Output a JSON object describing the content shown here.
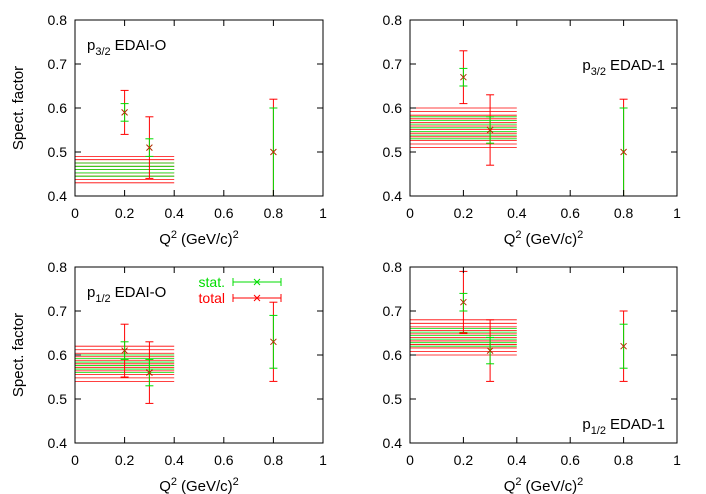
{
  "chart_data": [
    {
      "type": "errorbar",
      "label": {
        "particle": "p",
        "sub": "3/2",
        "text": "EDAI-O"
      },
      "label_corner": "upper left",
      "ylabel": "Spect. factor",
      "xlabel": {
        "text": "Q",
        "sup": "2",
        "unit": "(GeV/c)",
        "unit_sup": "2"
      },
      "x": [
        0.2,
        0.3,
        0.8
      ],
      "values": [
        0.59,
        0.51,
        0.5
      ],
      "fit": {
        "xrange": [
          0,
          0.4
        ],
        "value": 0.46
      },
      "series": [
        {
          "color": "#00dd00",
          "errors": [
            0.02,
            0.02,
            0.1
          ],
          "fit_error": 0.015
        },
        {
          "color": "#ff0000",
          "errors": [
            0.05,
            0.07,
            0.12
          ],
          "fit_error": 0.03
        }
      ],
      "xlim": [
        0,
        1
      ],
      "ylim": [
        0.4,
        0.8
      ],
      "xticks": [
        0,
        0.2,
        0.4,
        0.6,
        0.8,
        1
      ],
      "yticks": [
        0.4,
        0.5,
        0.6,
        0.7,
        0.8
      ]
    },
    {
      "type": "errorbar",
      "label": {
        "particle": "p",
        "sub": "3/2",
        "text": "EDAD-1"
      },
      "label_corner": "upper right",
      "xlabel": {
        "text": "Q",
        "sup": "2",
        "unit": "(GeV/c)",
        "unit_sup": "2"
      },
      "x": [
        0.2,
        0.3,
        0.8
      ],
      "values": [
        0.67,
        0.55,
        0.5
      ],
      "fit": {
        "xrange": [
          0,
          0.4
        ],
        "value": 0.555
      },
      "series": [
        {
          "color": "#00dd00",
          "errors": [
            0.02,
            0.03,
            0.1
          ],
          "fit_error": 0.025
        },
        {
          "color": "#ff0000",
          "errors": [
            0.06,
            0.08,
            0.12
          ],
          "fit_error": 0.045
        }
      ],
      "xlim": [
        0,
        1
      ],
      "ylim": [
        0.4,
        0.8
      ],
      "xticks": [
        0,
        0.2,
        0.4,
        0.6,
        0.8,
        1
      ],
      "yticks": [
        0.4,
        0.5,
        0.6,
        0.7,
        0.8
      ]
    },
    {
      "type": "errorbar",
      "label": {
        "particle": "p",
        "sub": "1/2",
        "text": "EDAI-O"
      },
      "label_corner": "upper left",
      "ylabel": "Spect. factor",
      "xlabel": {
        "text": "Q",
        "sup": "2",
        "unit": "(GeV/c)",
        "unit_sup": "2"
      },
      "x": [
        0.2,
        0.3,
        0.8
      ],
      "values": [
        0.61,
        0.56,
        0.63
      ],
      "fit": {
        "xrange": [
          0,
          0.4
        ],
        "value": 0.58
      },
      "series": [
        {
          "name": "stat.",
          "color": "#00dd00",
          "errors": [
            0.02,
            0.03,
            0.06
          ],
          "fit_error": 0.02
        },
        {
          "name": "total",
          "color": "#ff0000",
          "errors": [
            0.06,
            0.07,
            0.09
          ],
          "fit_error": 0.04
        }
      ],
      "legend": "upper right",
      "xlim": [
        0,
        1
      ],
      "ylim": [
        0.4,
        0.8
      ],
      "xticks": [
        0,
        0.2,
        0.4,
        0.6,
        0.8,
        1
      ],
      "yticks": [
        0.4,
        0.5,
        0.6,
        0.7,
        0.8
      ]
    },
    {
      "type": "errorbar",
      "label": {
        "particle": "p",
        "sub": "1/2",
        "text": "EDAD-1"
      },
      "label_corner": "lower right",
      "xlabel": {
        "text": "Q",
        "sup": "2",
        "unit": "(GeV/c)",
        "unit_sup": "2"
      },
      "x": [
        0.2,
        0.3,
        0.8
      ],
      "values": [
        0.72,
        0.61,
        0.62
      ],
      "fit": {
        "xrange": [
          0,
          0.4
        ],
        "value": 0.64
      },
      "series": [
        {
          "color": "#00dd00",
          "errors": [
            0.02,
            0.03,
            0.05
          ],
          "fit_error": 0.02
        },
        {
          "color": "#ff0000",
          "errors": [
            0.07,
            0.07,
            0.08
          ],
          "fit_error": 0.04
        }
      ],
      "xlim": [
        0,
        1
      ],
      "ylim": [
        0.4,
        0.8
      ],
      "xticks": [
        0,
        0.2,
        0.4,
        0.6,
        0.8,
        1
      ],
      "yticks": [
        0.4,
        0.5,
        0.6,
        0.7,
        0.8
      ]
    }
  ]
}
